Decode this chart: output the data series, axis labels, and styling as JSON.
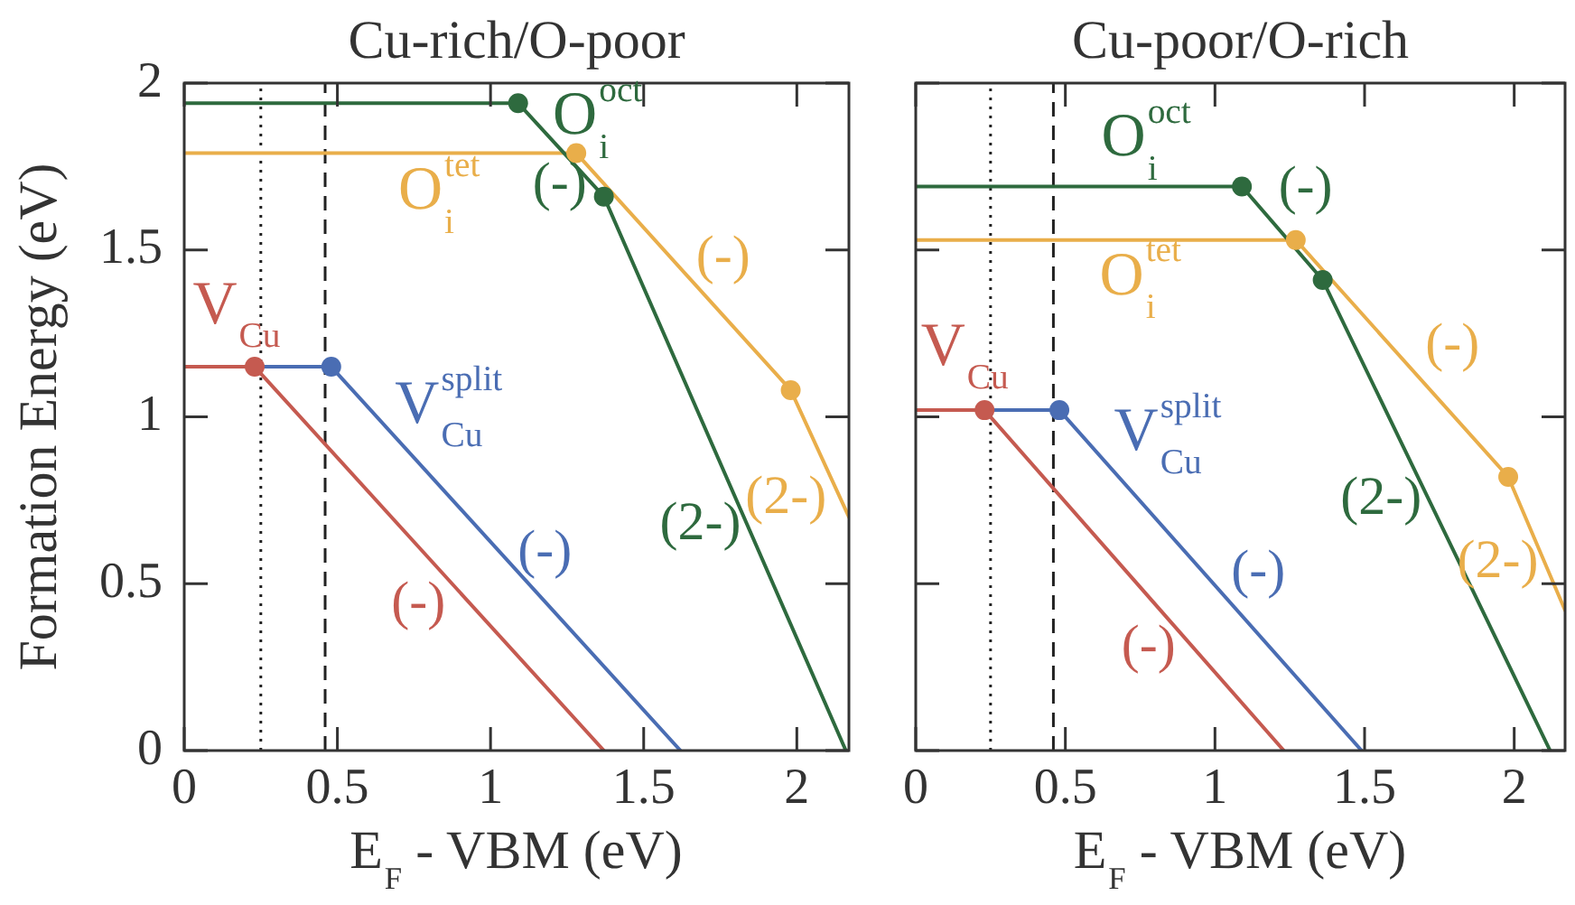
{
  "chart_data": [
    {
      "type": "line",
      "title": "Cu-rich/O-poor",
      "xlabel": "E$_{F}$ - VBM (eV)",
      "ylabel": "Formation Energy (eV)",
      "xlim": [
        0,
        2.17
      ],
      "ylim": [
        0,
        2
      ],
      "xticks": [
        0,
        0.5,
        1,
        1.5,
        2
      ],
      "yticks": [
        0,
        0.5,
        1,
        1.5,
        2
      ],
      "marker": "none",
      "line_style": "solid",
      "series": [
        {
          "name": "O$_{i}$$^{oct}$",
          "color": "#2e6a3e",
          "x": [
            0,
            1.09,
            1.37,
            2.16
          ],
          "values": [
            1.94,
            1.94,
            1.66,
            0
          ]
        },
        {
          "name": "O$_{i}$$^{tet}$",
          "color": "#e9ae4a",
          "x": [
            0,
            1.28,
            1.98,
            2.17
          ],
          "values": [
            1.79,
            1.79,
            1.08,
            0.7
          ]
        },
        {
          "name": "V$_{Cu}$",
          "color": "#c55a50",
          "x": [
            0,
            0.23,
            1.37
          ],
          "values": [
            1.15,
            1.15,
            0
          ]
        },
        {
          "name": "V$_{Cu}$$^{split}$",
          "color": "#4a6db3",
          "x": [
            0,
            0.48,
            1.62
          ],
          "values": [
            1.15,
            1.15,
            0
          ]
        },
        {
          "type": "scatter",
          "marker": "circle",
          "color": "#2e6a3e",
          "x": [
            1.09,
            1.37
          ],
          "values": [
            1.94,
            1.66
          ]
        },
        {
          "type": "scatter",
          "marker": "circle",
          "color": "#e9ae4a",
          "x": [
            1.28,
            1.98
          ],
          "values": [
            1.79,
            1.08
          ]
        },
        {
          "type": "scatter",
          "marker": "circle",
          "color": "#c55a50",
          "x": [
            0.23
          ],
          "values": [
            1.15
          ]
        },
        {
          "type": "scatter",
          "marker": "circle",
          "color": "#4a6db3",
          "x": [
            0.48
          ],
          "values": [
            1.15
          ]
        }
      ],
      "ref_lines": [
        {
          "axis": "x",
          "value": 0.25,
          "line_style": "dotted",
          "color": "#222222"
        },
        {
          "axis": "x",
          "value": 0.46,
          "line_style": "dashed",
          "color": "#222222"
        }
      ],
      "annotations": [
        {
          "text": "(-)",
          "x": 1.32,
          "y": 1.71
        },
        {
          "text": "(2-)",
          "x": 1.85,
          "y": 0.65
        },
        {
          "text": "(-)",
          "x": 1.6,
          "y": 1.47
        },
        {
          "text": "(2-)",
          "x": 2.1,
          "y": 0.84
        },
        {
          "text": "(-)",
          "x": 0.9,
          "y": 0.47
        },
        {
          "text": "(-)",
          "x": 1.0,
          "y": 0.63
        }
      ]
    },
    {
      "type": "line",
      "title": "Cu-poor/O-rich",
      "xlabel": "E$_{F}$ - VBM (eV)",
      "xlim": [
        0,
        2.17
      ],
      "ylim": [
        0,
        2
      ],
      "xticks": [
        0,
        0.5,
        1,
        1.5,
        2
      ],
      "yticks": [
        0,
        0.5,
        1,
        1.5,
        2
      ],
      "tick_labels": "x",
      "marker": "none",
      "line_style": "solid",
      "series": [
        {
          "name": "O$_{i}$$^{oct}$",
          "color": "#2e6a3e",
          "x": [
            0,
            1.09,
            1.36,
            2.12
          ],
          "values": [
            1.69,
            1.69,
            1.41,
            0
          ]
        },
        {
          "name": "O$_{i}$$^{tet}$",
          "color": "#e9ae4a",
          "x": [
            0,
            1.27,
            1.98,
            2.17
          ],
          "values": [
            1.53,
            1.53,
            0.82,
            0.42
          ]
        },
        {
          "name": "V$_{Cu}$",
          "color": "#c55a50",
          "x": [
            0,
            0.23,
            1.23
          ],
          "values": [
            1.02,
            1.02,
            0
          ]
        },
        {
          "name": "V$_{Cu}$$^{split}$",
          "color": "#4a6db3",
          "x": [
            0,
            0.48,
            1.49
          ],
          "values": [
            1.02,
            1.02,
            0
          ]
        },
        {
          "type": "scatter",
          "marker": "circle",
          "color": "#2e6a3e",
          "x": [
            1.09,
            1.36
          ],
          "values": [
            1.69,
            1.41
          ]
        },
        {
          "type": "scatter",
          "marker": "circle",
          "color": "#e9ae4a",
          "x": [
            1.27,
            1.98
          ],
          "values": [
            1.53,
            0.82
          ]
        },
        {
          "type": "scatter",
          "marker": "circle",
          "color": "#c55a50",
          "x": [
            0.23
          ],
          "values": [
            1.02
          ]
        },
        {
          "type": "scatter",
          "marker": "circle",
          "color": "#4a6db3",
          "x": [
            0.48
          ],
          "values": [
            1.02
          ]
        }
      ],
      "ref_lines": [
        {
          "axis": "x",
          "value": 0.25,
          "line_style": "dotted",
          "color": "#222222"
        },
        {
          "axis": "x",
          "value": 0.46,
          "line_style": "dashed",
          "color": "#222222"
        }
      ],
      "annotations": [
        {
          "text": "(-)",
          "x": 1.2,
          "y": 1.58
        },
        {
          "text": "(2-)",
          "x": 1.7,
          "y": 0.78
        },
        {
          "text": "(-)",
          "x": 1.6,
          "y": 1.2
        },
        {
          "text": "(2-)",
          "x": 2.06,
          "y": 0.65
        },
        {
          "text": "(-)",
          "x": 0.85,
          "y": 0.39
        },
        {
          "text": "(-)",
          "x": 1.0,
          "y": 0.5
        }
      ]
    }
  ]
}
